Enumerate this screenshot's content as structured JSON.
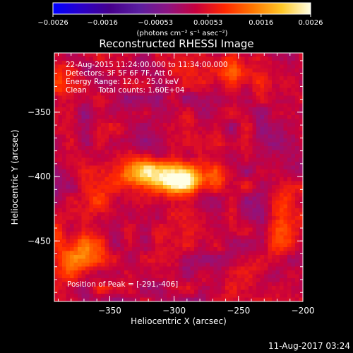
{
  "chart_data": {
    "type": "heatmap",
    "title": "Reconstructed RHESSI Image",
    "xlabel": "Heliocentric X (arcsec)",
    "ylabel": "Heliocentric Y (arcsec)",
    "xlim": [
      -393,
      -200
    ],
    "ylim": [
      -497,
      -304
    ],
    "x_ticks": [
      {
        "value": -350,
        "label": "−350"
      },
      {
        "value": -300,
        "label": "−300"
      },
      {
        "value": -250,
        "label": "−250"
      },
      {
        "value": -200,
        "label": "−200"
      }
    ],
    "y_ticks": [
      {
        "value": -350,
        "label": "−350"
      },
      {
        "value": -400,
        "label": "−400"
      },
      {
        "value": -450,
        "label": "−450"
      }
    ],
    "colorbar": {
      "range": [
        -0.0026,
        0.0026
      ],
      "unit_label": "(photons cm⁻² s⁻¹ asec⁻²)",
      "ticks": [
        {
          "value": -0.0026,
          "label": "−0.0026"
        },
        {
          "value": -0.0016,
          "label": "−0.0016"
        },
        {
          "value": -0.00053,
          "label": "−0.00053"
        },
        {
          "value": 0.00053,
          "label": "0.00053"
        },
        {
          "value": 0.0016,
          "label": "0.0016"
        },
        {
          "value": 0.0026,
          "label": "0.0026"
        }
      ],
      "colors": [
        "#0000ff",
        "#2a00c8",
        "#46008c",
        "#5a1ea0",
        "#8c1482",
        "#c8003c",
        "#ff2800",
        "#ff7800",
        "#ffc828",
        "#ffffe6"
      ]
    },
    "annotations": [
      "22-Aug-2015 11:24:00.000 to 11:34:00.000",
      "Detectors: 3F 5F 6F 7F, Att 0",
      "Energy Range: 12.0 - 25.0 keV",
      "Clean     Total counts: 1.60E+04"
    ],
    "peak_label": "Position of Peak = [-291,-406]",
    "peak": [
      -291,
      -406
    ],
    "sources": [
      {
        "x": -305,
        "y": -400,
        "sx": 24,
        "sy": 8,
        "amp": 0.0024
      },
      {
        "x": -291,
        "y": -406,
        "sx": 7,
        "sy": 5,
        "amp": 0.0012
      },
      {
        "x": -320,
        "y": -392,
        "sx": 8,
        "sy": 4,
        "amp": 0.0006
      },
      {
        "x": -375,
        "y": -460,
        "sx": 16,
        "sy": 14,
        "amp": 0.0011
      },
      {
        "x": -250,
        "y": -320,
        "sx": 22,
        "sy": 10,
        "amp": 0.0008
      },
      {
        "x": -215,
        "y": -430,
        "sx": 8,
        "sy": 22,
        "amp": 0.0008
      },
      {
        "x": -360,
        "y": -420,
        "sx": 10,
        "sy": 8,
        "amp": 0.0006
      },
      {
        "x": -385,
        "y": -330,
        "sx": 10,
        "sy": 10,
        "amp": 0.0005
      },
      {
        "x": -240,
        "y": -470,
        "sx": 12,
        "sy": 10,
        "amp": 0.0004
      }
    ],
    "footer": "11-Aug-2017 03:24"
  }
}
